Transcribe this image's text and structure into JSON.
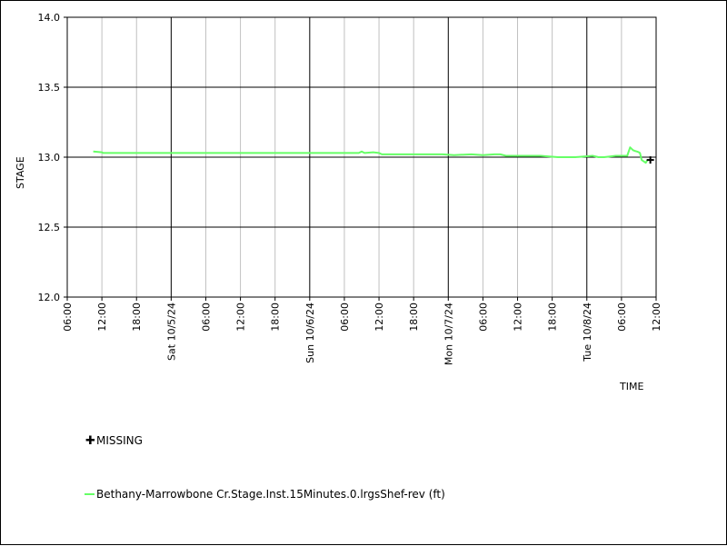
{
  "chart_data": {
    "type": "line",
    "ylabel": "STAGE",
    "xlabel": "TIME",
    "ylim": [
      12.0,
      14.0
    ],
    "yticks": [
      12.0,
      12.5,
      13.0,
      13.5,
      14.0
    ],
    "ytick_labels": [
      "12.0",
      "12.5",
      "13.0",
      "13.5",
      "14.0"
    ],
    "xlim_hours": [
      0,
      102
    ],
    "xtick_labels": [
      "06:00",
      "12:00",
      "18:00",
      "Sat 10/5/24",
      "06:00",
      "12:00",
      "18:00",
      "Sun 10/6/24",
      "06:00",
      "12:00",
      "18:00",
      "Mon 10/7/24",
      "06:00",
      "12:00",
      "18:00",
      "Tue 10/8/24",
      "06:00",
      "12:00"
    ],
    "major_tick_labels": [
      "Sat 10/5/24",
      "Sun 10/6/24",
      "Mon 10/7/24",
      "Tue 10/8/24"
    ],
    "grid": true,
    "series": [
      {
        "name": "Bethany-Marrowbone Cr.Stage.Inst.15Minutes.0.lrgsShef-rev (ft)",
        "color": "#66ff66",
        "x": [
          4.5,
          6,
          6.2,
          10,
          24,
          48,
          50.5,
          51,
          51.5,
          53,
          54,
          54.5,
          55,
          60,
          65,
          67,
          70,
          72,
          74,
          75,
          76,
          82,
          85,
          86,
          86.5,
          88,
          91,
          92,
          93,
          95,
          96,
          97,
          97.5,
          98,
          98.3,
          98.7,
          99,
          99.2,
          99.5,
          100.2,
          100.5
        ],
        "y": [
          13.04,
          13.035,
          13.03,
          13.03,
          13.03,
          13.03,
          13.03,
          13.04,
          13.03,
          13.035,
          13.03,
          13.02,
          13.02,
          13.02,
          13.02,
          13.015,
          13.02,
          13.015,
          13.02,
          13.02,
          13.01,
          13.01,
          13.0,
          13.0,
          13.0,
          13.0,
          13.01,
          13.0,
          13.0,
          13.01,
          13.01,
          13.01,
          13.07,
          13.05,
          13.045,
          13.04,
          13.035,
          13.03,
          12.98,
          12.96,
          12.98
        ]
      }
    ],
    "missing": {
      "name": "MISSING",
      "x": [
        101
      ],
      "y": [
        12.98
      ]
    }
  },
  "legend": {
    "missing_label": "MISSING",
    "series_label": "Bethany-Marrowbone Cr.Stage.Inst.15Minutes.0.lrgsShef-rev (ft)"
  }
}
